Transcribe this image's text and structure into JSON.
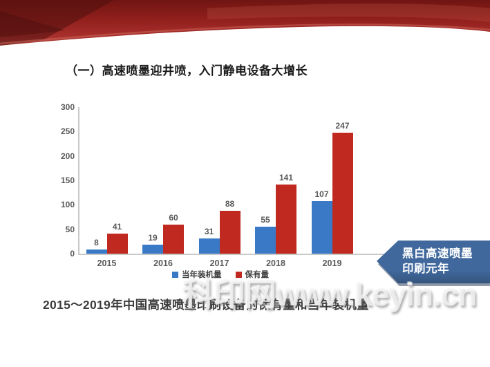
{
  "slide": {
    "title": "（一）高速喷墨迎井喷，入门静电设备大增长",
    "caption": "2015～2019年中国高速喷墨印刷设备的保有量和当年装机量",
    "watermark": "科印网www.keyin.cn",
    "callout": {
      "line1": "黑白高速喷墨",
      "line2": "印刷元年",
      "color": "#40689c"
    }
  },
  "chart_data": {
    "type": "bar",
    "categories": [
      "2015",
      "2016",
      "2017",
      "2018",
      "2019"
    ],
    "series": [
      {
        "name": "当年装机量",
        "color": "#3a79c6",
        "values": [
          8,
          19,
          31,
          55,
          107
        ]
      },
      {
        "name": "保有量",
        "color": "#bf2920",
        "values": [
          41,
          60,
          88,
          141,
          247
        ]
      }
    ],
    "ylim": [
      0,
      300
    ],
    "ytick_step": 50,
    "grid": false,
    "legend_position": "bottom",
    "value_labels": true
  },
  "colors": {
    "banner_red_dark": "#701512",
    "banner_red": "#9c241f",
    "banner_red_light": "#b24a42",
    "bar_blue": "#3a79c6",
    "bar_red": "#bf2920",
    "callout_blue": "#40689c",
    "axis_gray": "#c9c9c9",
    "label_gray": "#595959"
  }
}
